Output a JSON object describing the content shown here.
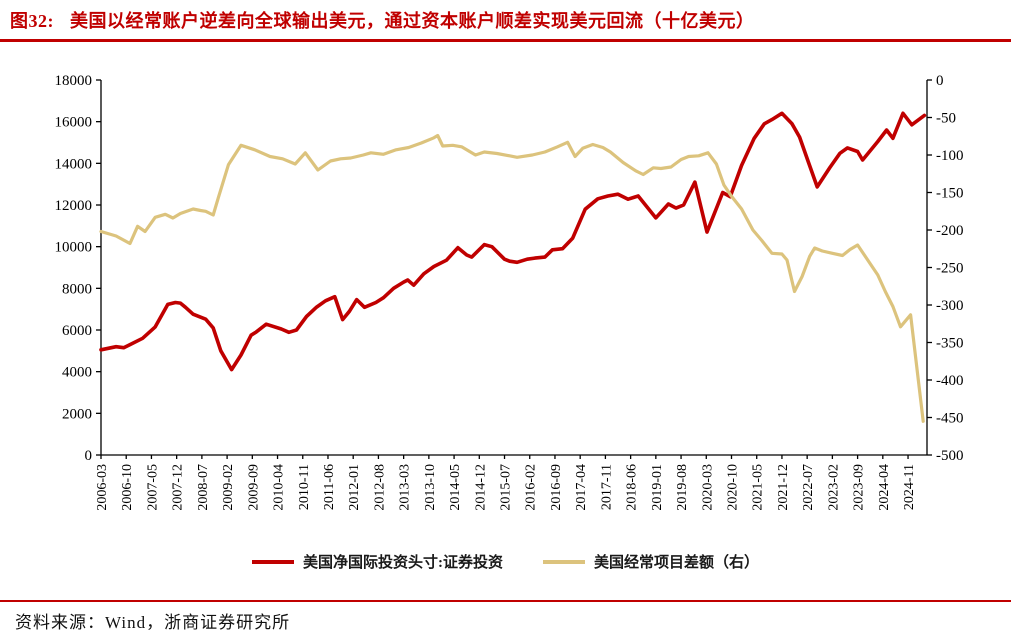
{
  "title": {
    "prefix": "图32:",
    "text": "美国以经常账户逆差向全球输出美元，通过资本账户顺差实现美元回流（十亿美元）"
  },
  "footer": {
    "source_text": "资料来源：Wind，浙商证券研究所"
  },
  "colors": {
    "accent_red": "#C00000",
    "line_red": "#C00000",
    "line_tan": "#DCC37D",
    "axis": "#000000",
    "text": "#111111",
    "background": "#FFFFFF"
  },
  "legend": {
    "items": [
      {
        "label": "美国净国际投资头寸:证券投资",
        "color": "#C00000"
      },
      {
        "label": "美国经常项目差额（右）",
        "color": "#DCC37D"
      }
    ]
  },
  "chart_data": {
    "type": "line",
    "title": "美国以经常账户逆差向全球输出美元，通过资本账户顺差实现美元回流（十亿美元）",
    "xlabel": "",
    "ylabel_left": "",
    "ylabel_right": "",
    "grid": false,
    "legend_position": "bottom",
    "x_axis": {
      "labels": [
        "2006-03",
        "2006-10",
        "2007-05",
        "2007-12",
        "2008-07",
        "2009-02",
        "2009-09",
        "2010-04",
        "2010-11",
        "2011-06",
        "2012-01",
        "2012-08",
        "2013-03",
        "2013-10",
        "2014-05",
        "2014-12",
        "2015-07",
        "2016-02",
        "2016-09",
        "2017-04",
        "2017-11",
        "2018-06",
        "2019-01",
        "2019-08",
        "2020-03",
        "2020-10",
        "2021-05",
        "2021-12",
        "2022-07",
        "2023-02",
        "2023-09",
        "2024-04",
        "2024-11"
      ],
      "label_rotation_deg": -90
    },
    "left_axis": {
      "min": 0,
      "max": 18000,
      "step": 2000,
      "tick_labels": [
        "18000",
        "16000",
        "14000",
        "12000",
        "10000",
        "8000",
        "6000",
        "4000",
        "2000",
        "0"
      ]
    },
    "right_axis": {
      "min": -500,
      "max": 0,
      "step": 50,
      "tick_labels": [
        "0",
        "-50",
        "-100",
        "-150",
        "-200",
        "-250",
        "-300",
        "-350",
        "-400",
        "-450",
        "-500"
      ]
    },
    "series": [
      {
        "name": "美国净国际投资头寸:证券投资",
        "axis": "left",
        "color": "#C00000",
        "line_width": 3.6,
        "points": [
          [
            0,
            5050
          ],
          [
            0.6,
            5200
          ],
          [
            0.9,
            5150
          ],
          [
            1.15,
            5300
          ],
          [
            1.65,
            5600
          ],
          [
            2.15,
            6150
          ],
          [
            2.65,
            7230
          ],
          [
            2.95,
            7320
          ],
          [
            3.15,
            7290
          ],
          [
            3.35,
            7090
          ],
          [
            3.65,
            6760
          ],
          [
            4.15,
            6520
          ],
          [
            4.45,
            6100
          ],
          [
            4.75,
            5000
          ],
          [
            5.18,
            4100
          ],
          [
            5.55,
            4800
          ],
          [
            5.95,
            5750
          ],
          [
            6.15,
            5900
          ],
          [
            6.55,
            6280
          ],
          [
            7.15,
            6050
          ],
          [
            7.45,
            5890
          ],
          [
            7.75,
            6000
          ],
          [
            8.15,
            6650
          ],
          [
            8.55,
            7100
          ],
          [
            8.9,
            7400
          ],
          [
            9.27,
            7600
          ],
          [
            9.58,
            6500
          ],
          [
            9.85,
            6900
          ],
          [
            10.14,
            7460
          ],
          [
            10.45,
            7090
          ],
          [
            10.9,
            7320
          ],
          [
            11.2,
            7550
          ],
          [
            11.6,
            8000
          ],
          [
            12,
            8300
          ],
          [
            12.16,
            8400
          ],
          [
            12.4,
            8150
          ],
          [
            12.8,
            8700
          ],
          [
            13.2,
            9050
          ],
          [
            13.7,
            9350
          ],
          [
            14.15,
            9950
          ],
          [
            14.5,
            9600
          ],
          [
            14.7,
            9500
          ],
          [
            15.2,
            10100
          ],
          [
            15.5,
            10000
          ],
          [
            16,
            9400
          ],
          [
            16.2,
            9300
          ],
          [
            16.5,
            9250
          ],
          [
            16.9,
            9400
          ],
          [
            17.2,
            9450
          ],
          [
            17.6,
            9500
          ],
          [
            17.9,
            9850
          ],
          [
            18.3,
            9900
          ],
          [
            18.7,
            10400
          ],
          [
            19.2,
            11800
          ],
          [
            19.7,
            12300
          ],
          [
            20.1,
            12430
          ],
          [
            20.5,
            12520
          ],
          [
            20.9,
            12280
          ],
          [
            21.3,
            12430
          ],
          [
            22,
            11380
          ],
          [
            22.5,
            12050
          ],
          [
            22.8,
            11850
          ],
          [
            23.1,
            12000
          ],
          [
            23.55,
            13100
          ],
          [
            24.03,
            10700
          ],
          [
            24.65,
            12600
          ],
          [
            24.95,
            12400
          ],
          [
            25.4,
            13900
          ],
          [
            25.9,
            15200
          ],
          [
            26.3,
            15900
          ],
          [
            26.6,
            16100
          ],
          [
            27,
            16400
          ],
          [
            27.4,
            15900
          ],
          [
            27.7,
            15260
          ],
          [
            28.05,
            14060
          ],
          [
            28.4,
            12870
          ],
          [
            28.9,
            13800
          ],
          [
            29.3,
            14480
          ],
          [
            29.6,
            14740
          ],
          [
            30,
            14570
          ],
          [
            30.2,
            14160
          ],
          [
            30.8,
            15050
          ],
          [
            31.15,
            15600
          ],
          [
            31.4,
            15200
          ],
          [
            31.8,
            16400
          ],
          [
            32.15,
            15850
          ],
          [
            32.65,
            16300
          ]
        ]
      },
      {
        "name": "美国经常项目差额（右）",
        "axis": "right",
        "color": "#DCC37D",
        "line_width": 3.2,
        "points": [
          [
            0,
            -202
          ],
          [
            0.6,
            -208
          ],
          [
            1.15,
            -218
          ],
          [
            1.45,
            -195
          ],
          [
            1.75,
            -202
          ],
          [
            2.15,
            -183
          ],
          [
            2.55,
            -179
          ],
          [
            2.85,
            -184
          ],
          [
            3.15,
            -178
          ],
          [
            3.65,
            -172
          ],
          [
            3.95,
            -174
          ],
          [
            4.15,
            -175
          ],
          [
            4.45,
            -180
          ],
          [
            4.65,
            -157
          ],
          [
            5.05,
            -113
          ],
          [
            5.55,
            -87
          ],
          [
            6.1,
            -93
          ],
          [
            6.7,
            -102
          ],
          [
            7.2,
            -105
          ],
          [
            7.7,
            -112
          ],
          [
            8.1,
            -97
          ],
          [
            8.6,
            -120
          ],
          [
            9.1,
            -108
          ],
          [
            9.5,
            -105
          ],
          [
            9.9,
            -104
          ],
          [
            10.4,
            -100
          ],
          [
            10.7,
            -97
          ],
          [
            11.2,
            -99
          ],
          [
            11.7,
            -93
          ],
          [
            12.2,
            -90
          ],
          [
            12.7,
            -84
          ],
          [
            13.2,
            -77
          ],
          [
            13.35,
            -74
          ],
          [
            13.55,
            -88
          ],
          [
            13.95,
            -87
          ],
          [
            14.3,
            -89
          ],
          [
            14.85,
            -100
          ],
          [
            15.2,
            -96
          ],
          [
            15.7,
            -98
          ],
          [
            16.2,
            -101
          ],
          [
            16.5,
            -103
          ],
          [
            17.1,
            -100
          ],
          [
            17.6,
            -96
          ],
          [
            18.1,
            -89
          ],
          [
            18.5,
            -83
          ],
          [
            18.8,
            -102
          ],
          [
            19.1,
            -91
          ],
          [
            19.5,
            -86
          ],
          [
            19.9,
            -90
          ],
          [
            20.2,
            -96
          ],
          [
            20.7,
            -110
          ],
          [
            21.2,
            -121
          ],
          [
            21.5,
            -126
          ],
          [
            21.9,
            -117
          ],
          [
            22.2,
            -118
          ],
          [
            22.6,
            -116
          ],
          [
            23,
            -106
          ],
          [
            23.3,
            -102
          ],
          [
            23.7,
            -101
          ],
          [
            24.07,
            -97
          ],
          [
            24.4,
            -112
          ],
          [
            24.7,
            -140
          ],
          [
            25,
            -155
          ],
          [
            25.4,
            -172
          ],
          [
            25.85,
            -200
          ],
          [
            26.2,
            -214
          ],
          [
            26.6,
            -231
          ],
          [
            27,
            -232
          ],
          [
            27.2,
            -240
          ],
          [
            27.5,
            -282
          ],
          [
            27.8,
            -262
          ],
          [
            28.1,
            -235
          ],
          [
            28.3,
            -224
          ],
          [
            28.6,
            -228
          ],
          [
            29,
            -231
          ],
          [
            29.4,
            -234
          ],
          [
            29.7,
            -226
          ],
          [
            30,
            -220
          ],
          [
            30.4,
            -240
          ],
          [
            30.8,
            -260
          ],
          [
            31.1,
            -282
          ],
          [
            31.4,
            -302
          ],
          [
            31.7,
            -329
          ],
          [
            32.1,
            -313
          ],
          [
            32.6,
            -455
          ]
        ]
      }
    ]
  }
}
